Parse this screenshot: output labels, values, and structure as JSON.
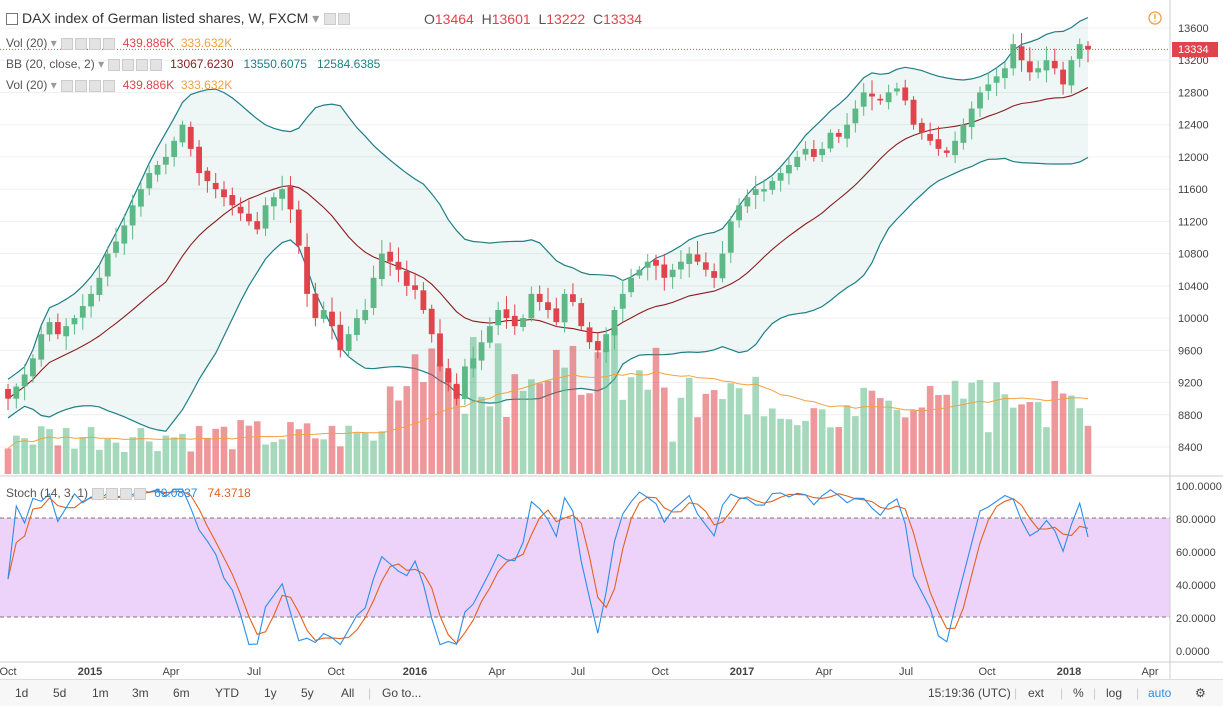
{
  "header": {
    "title": "DAX index of German listed shares, W, FXCM",
    "open_label": "O",
    "open": "13464",
    "high_label": "H",
    "high": "13601",
    "low_label": "L",
    "low": "13222",
    "close_label": "C",
    "close": "13334"
  },
  "indicators": {
    "vol1": {
      "name": "Vol (20)",
      "v1": "439.886K",
      "v2": "333.632K"
    },
    "bb": {
      "name": "BB (20, close, 2)",
      "v1": "13067.6230",
      "v2": "13550.6075",
      "v3": "12584.6385"
    },
    "vol2": {
      "name": "Vol (20)",
      "v1": "439.886K",
      "v2": "333.632K"
    },
    "stoch": {
      "name": "Stoch (14, 3, 1)",
      "v1": "69.0837",
      "v2": "74.3718"
    }
  },
  "price_scale": [
    "13600",
    "13200",
    "12800",
    "12400",
    "12000",
    "11600",
    "11200",
    "10800",
    "10400",
    "10000",
    "9600",
    "9200",
    "8800",
    "8400"
  ],
  "last_price_label": "13334",
  "stoch_scale": [
    "100.0000",
    "80.0000",
    "60.0000",
    "40.0000",
    "20.0000",
    "0.0000"
  ],
  "time_labels": [
    "Oct",
    "2015",
    "Apr",
    "Jul",
    "Oct",
    "2016",
    "Apr",
    "Jul",
    "Oct",
    "2017",
    "Apr",
    "Jul",
    "Oct",
    "2018",
    "Apr"
  ],
  "toolbar": {
    "ranges": [
      "1d",
      "5d",
      "1m",
      "3m",
      "6m",
      "YTD",
      "1y",
      "5y",
      "All"
    ],
    "goto": "Go to...",
    "clock": "15:19:36 (UTC)",
    "ext": "ext",
    "pct": "%",
    "log": "log",
    "auto": "auto"
  },
  "colors": {
    "up": "#5cb985",
    "down": "#e0434b",
    "band": "#1e7f86",
    "basis": "#8b1d1d",
    "stoch_k": "#2a8ee8",
    "stoch_d": "#e2621f",
    "stoch_bg": "#e8c8f8",
    "vol_ma": "#f2a13e"
  },
  "chart_data": {
    "type": "candlestick",
    "symbol": "DAX index of German listed shares",
    "interval": "Weekly",
    "x_range": [
      "2014-10",
      "2018-02"
    ],
    "y_range": [
      8100,
      13800
    ],
    "last_close": 13334,
    "close": [
      9000,
      9150,
      9300,
      9500,
      9800,
      9950,
      9800,
      9900,
      10000,
      10150,
      10300,
      10500,
      10800,
      10950,
      11150,
      11400,
      11600,
      11800,
      11900,
      12000,
      12200,
      12400,
      12100,
      11800,
      11700,
      11600,
      11500,
      11400,
      11300,
      11200,
      11100,
      11400,
      11500,
      11600,
      11350,
      10900,
      10300,
      10000,
      10100,
      9900,
      9600,
      9800,
      10000,
      10100,
      10500,
      10800,
      10700,
      10600,
      10400,
      10350,
      10100,
      9800,
      9400,
      9200,
      9000,
      9400,
      9500,
      9700,
      9900,
      10100,
      10000,
      9900,
      10000,
      10300,
      10200,
      10100,
      9950,
      10300,
      10200,
      9900,
      9700,
      9600,
      9800,
      10100,
      10300,
      10500,
      10600,
      10700,
      10650,
      10500,
      10600,
      10700,
      10800,
      10700,
      10600,
      10500,
      10800,
      11200,
      11400,
      11500,
      11600,
      11600,
      11700,
      11800,
      11900,
      12000,
      12100,
      12000,
      12100,
      12300,
      12250,
      12400,
      12600,
      12800,
      12750,
      12700,
      12800,
      12850,
      12700,
      12400,
      12300,
      12200,
      12100,
      12050,
      12200,
      12400,
      12600,
      12800,
      12900,
      13000,
      13100,
      13400,
      13200,
      13050,
      13100,
      13200,
      13100,
      12900,
      13200,
      13400,
      13334
    ],
    "bb_basis_last": 13067.623,
    "bb_upper_last": 13550.6075,
    "bb_lower_last": 12584.6385,
    "volume_ma_last_k": 333.632,
    "volume_last_k": 439.886,
    "stoch_k_last": 69.0837,
    "stoch_d_last": 74.3718,
    "stoch_levels": [
      20,
      80
    ]
  }
}
